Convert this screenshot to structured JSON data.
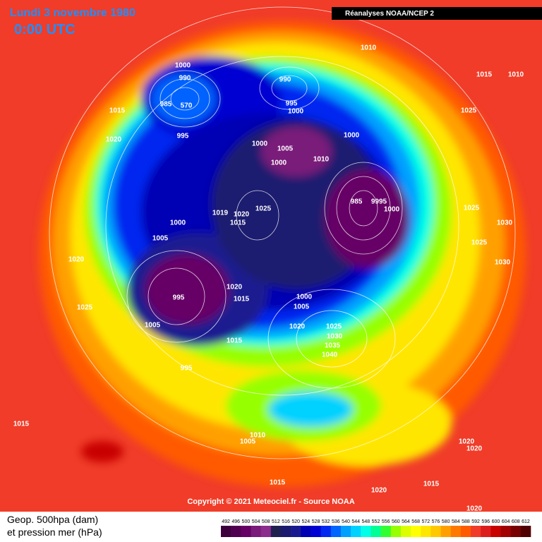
{
  "header": {
    "date": "Lundi 3 novembre 1980",
    "time": "0:00 UTC",
    "source": "Réanalyses NOAA/NCEP 2"
  },
  "copyright": "Copyright © 2021 Meteociel.fr - Source NOAA",
  "legend": {
    "line1": "Geop. 500hpa (dam)",
    "line2": "et pression mer (hPa)",
    "scale": [
      492,
      496,
      500,
      504,
      508,
      512,
      516,
      520,
      524,
      528,
      532,
      536,
      540,
      544,
      548,
      552,
      556,
      560,
      564,
      568,
      572,
      576,
      580,
      584,
      588,
      592,
      596,
      600,
      604,
      608,
      612
    ],
    "colors": [
      "#3c003c",
      "#500050",
      "#660066",
      "#7a1a7a",
      "#8c2c8c",
      "#202050",
      "#1a1a70",
      "#1a1a90",
      "#0000b4",
      "#0000d2",
      "#0028f0",
      "#0064ff",
      "#00a0ff",
      "#00d2ff",
      "#00ffe6",
      "#00ff96",
      "#32ff32",
      "#96ff00",
      "#dcff00",
      "#ffff00",
      "#ffe600",
      "#ffc800",
      "#ffa000",
      "#ff7800",
      "#ff5a00",
      "#f03c28",
      "#dc1e1e",
      "#c80000",
      "#a00000",
      "#780000",
      "#500000"
    ]
  },
  "isobar_labels": [
    "1010",
    "1015",
    "1010",
    "1000",
    "990",
    "985",
    "570",
    "990",
    "995",
    "1000",
    "1015",
    "1025",
    "1020",
    "995",
    "1000",
    "1000",
    "1005",
    "1010",
    "1000",
    "985",
    "9995",
    "1000",
    "1025",
    "1030",
    "1019",
    "1020",
    "1025",
    "1015",
    "1000",
    "1005",
    "1025",
    "1030",
    "1020",
    "995",
    "1020",
    "1015",
    "1000",
    "1005",
    "1025",
    "1020",
    "1025",
    "1030",
    "1035",
    "1040",
    "1005",
    "1015",
    "995",
    "1015",
    "1010",
    "1005",
    "1020",
    "1020",
    "1015",
    "1015",
    "1020",
    "1020"
  ]
}
